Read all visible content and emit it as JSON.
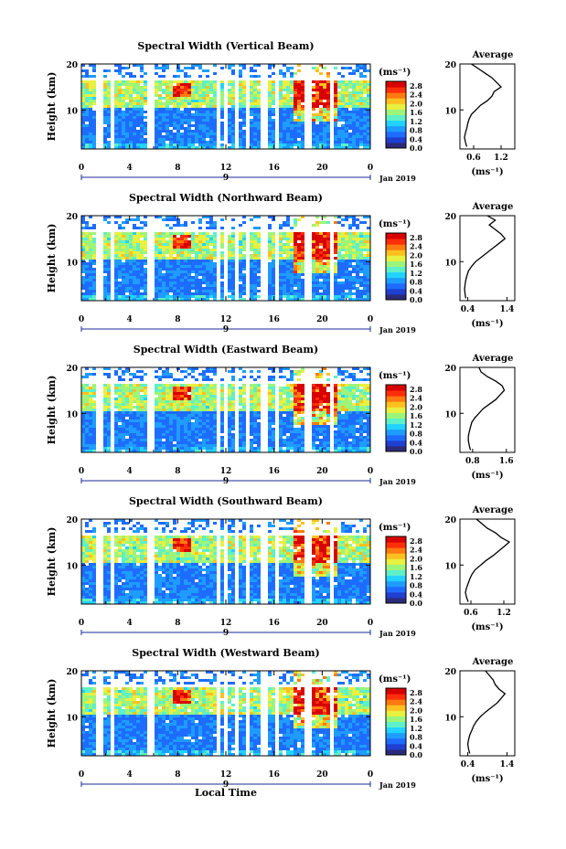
{
  "figure": {
    "date_label": "Jan 2019",
    "xlabel": "Local Time",
    "ylabel": "Height (km)",
    "unit_label": "(ms⁻¹)",
    "day_marker": "9",
    "profile_title": "Average",
    "colors": [
      "#2b2b7a",
      "#1f3fd0",
      "#1e6cff",
      "#1e9cff",
      "#22d2ff",
      "#5ef0c8",
      "#9cf57a",
      "#e8f040",
      "#ffc020",
      "#ff7a10",
      "#ff2e0a",
      "#d80000"
    ]
  },
  "chart_data": [
    {
      "type": "heatmap",
      "title": "Spectral Width (Vertical Beam)",
      "xlabel": "Local Time",
      "ylabel": "Height (km)",
      "x_ticks": [
        "0",
        "4",
        "8",
        "12",
        "16",
        "20",
        "0"
      ],
      "x_tick_values": [
        0,
        4,
        8,
        12,
        16,
        20,
        24
      ],
      "y_ticks": [
        "10",
        "20"
      ],
      "y_tick_values": [
        10,
        20
      ],
      "ylim": [
        1.5,
        20
      ],
      "colorbar_ticks": [
        "2.8",
        "2.4",
        "2.0",
        "1.6",
        "1.2",
        "0.8",
        "0.4",
        "0.0"
      ],
      "colorbar_range": [
        0.0,
        3.0
      ],
      "profile": {
        "title": "Average",
        "xlabel": "(ms⁻¹)",
        "x_ticks": [
          "0.6",
          "1.2"
        ],
        "x_tick_values": [
          0.6,
          1.2
        ],
        "xlim": [
          0.3,
          1.5
        ],
        "height": [
          2,
          3,
          4,
          5,
          6,
          7,
          8,
          9,
          10,
          11,
          12,
          13,
          14,
          15,
          16,
          17,
          18,
          19,
          20
        ],
        "value": [
          0.45,
          0.42,
          0.4,
          0.42,
          0.45,
          0.47,
          0.5,
          0.55,
          0.65,
          0.75,
          0.9,
          1.0,
          1.05,
          1.2,
          1.1,
          1.0,
          0.85,
          0.7,
          0.55
        ]
      }
    },
    {
      "type": "heatmap",
      "title": "Spectral Width (Northward Beam)",
      "xlabel": "Local Time",
      "ylabel": "Height (km)",
      "x_ticks": [
        "0",
        "4",
        "8",
        "12",
        "16",
        "20",
        "0"
      ],
      "x_tick_values": [
        0,
        4,
        8,
        12,
        16,
        20,
        24
      ],
      "y_ticks": [
        "10",
        "20"
      ],
      "y_tick_values": [
        10,
        20
      ],
      "ylim": [
        1.5,
        20
      ],
      "colorbar_ticks": [
        "2.8",
        "2.4",
        "2.0",
        "1.6",
        "1.2",
        "0.8",
        "0.4",
        "0.0"
      ],
      "colorbar_range": [
        0.0,
        3.0
      ],
      "profile": {
        "title": "Average",
        "xlabel": "(ms⁻¹)",
        "x_ticks": [
          "0.4",
          "1.4"
        ],
        "x_tick_values": [
          0.4,
          1.4
        ],
        "xlim": [
          0.2,
          1.6
        ],
        "height": [
          2,
          3,
          4,
          5,
          6,
          7,
          8,
          9,
          10,
          11,
          12,
          13,
          14,
          15,
          16,
          17,
          18,
          19,
          20
        ],
        "value": [
          0.35,
          0.33,
          0.32,
          0.33,
          0.35,
          0.38,
          0.42,
          0.5,
          0.6,
          0.75,
          0.9,
          1.05,
          1.2,
          1.35,
          1.25,
          1.1,
          0.95,
          1.1,
          0.9
        ]
      }
    },
    {
      "type": "heatmap",
      "title": "Spectral Width (Eastward Beam)",
      "xlabel": "Local Time",
      "ylabel": "Height (km)",
      "x_ticks": [
        "0",
        "4",
        "8",
        "12",
        "16",
        "20",
        "0"
      ],
      "x_tick_values": [
        0,
        4,
        8,
        12,
        16,
        20,
        24
      ],
      "y_ticks": [
        "10",
        "20"
      ],
      "y_tick_values": [
        10,
        20
      ],
      "ylim": [
        1.5,
        20
      ],
      "colorbar_ticks": [
        "2.8",
        "2.4",
        "2.0",
        "1.6",
        "1.2",
        "0.8",
        "0.4",
        "0.0"
      ],
      "colorbar_range": [
        0.0,
        3.0
      ],
      "profile": {
        "title": "Average",
        "xlabel": "(ms⁻¹)",
        "x_ticks": [
          "0.8",
          "1.6"
        ],
        "x_tick_values": [
          0.8,
          1.6
        ],
        "xlim": [
          0.5,
          1.8
        ],
        "height": [
          2,
          3,
          4,
          5,
          6,
          7,
          8,
          9,
          10,
          11,
          12,
          13,
          14,
          15,
          16,
          17,
          18,
          19,
          20
        ],
        "value": [
          0.75,
          0.72,
          0.7,
          0.7,
          0.72,
          0.75,
          0.78,
          0.85,
          0.95,
          1.05,
          1.2,
          1.35,
          1.45,
          1.55,
          1.5,
          1.35,
          1.15,
          1.0,
          0.95
        ]
      }
    },
    {
      "type": "heatmap",
      "title": "Spectral Width (Southward Beam)",
      "xlabel": "Local Time",
      "ylabel": "Height (km)",
      "x_ticks": [
        "0",
        "4",
        "8",
        "12",
        "16",
        "20",
        "0"
      ],
      "x_tick_values": [
        0,
        4,
        8,
        12,
        16,
        20,
        24
      ],
      "y_ticks": [
        "10",
        "20"
      ],
      "y_tick_values": [
        10,
        20
      ],
      "ylim": [
        1.5,
        20
      ],
      "colorbar_ticks": [
        "2.8",
        "2.4",
        "2.0",
        "1.6",
        "1.2",
        "0.8",
        "0.4",
        "0.0"
      ],
      "colorbar_range": [
        0.0,
        3.0
      ],
      "profile": {
        "title": "Average",
        "xlabel": "(ms⁻¹)",
        "x_ticks": [
          "0.6",
          "1.2"
        ],
        "x_tick_values": [
          0.6,
          1.2
        ],
        "xlim": [
          0.4,
          1.4
        ],
        "height": [
          2,
          3,
          4,
          5,
          6,
          7,
          8,
          9,
          10,
          11,
          12,
          13,
          14,
          15,
          16,
          17,
          18,
          19,
          20
        ],
        "value": [
          0.55,
          0.52,
          0.5,
          0.52,
          0.55,
          0.58,
          0.62,
          0.68,
          0.78,
          0.88,
          1.0,
          1.1,
          1.2,
          1.3,
          1.15,
          1.05,
          0.9,
          0.8,
          0.7
        ]
      }
    },
    {
      "type": "heatmap",
      "title": "Spectral Width (Westward Beam)",
      "xlabel": "Local Time",
      "ylabel": "Height (km)",
      "x_ticks": [
        "0",
        "4",
        "8",
        "12",
        "16",
        "20",
        "0"
      ],
      "x_tick_values": [
        0,
        4,
        8,
        12,
        16,
        20,
        24
      ],
      "y_ticks": [
        "10",
        "20"
      ],
      "y_tick_values": [
        10,
        20
      ],
      "ylim": [
        1.5,
        20
      ],
      "colorbar_ticks": [
        "2.8",
        "2.4",
        "2.0",
        "1.6",
        "1.2",
        "0.8",
        "0.4",
        "0.0"
      ],
      "colorbar_range": [
        0.0,
        3.0
      ],
      "profile": {
        "title": "Average",
        "xlabel": "(ms⁻¹)",
        "x_ticks": [
          "0.4",
          "1.4"
        ],
        "x_tick_values": [
          0.4,
          1.4
        ],
        "xlim": [
          0.2,
          1.6
        ],
        "height": [
          2,
          3,
          4,
          5,
          6,
          7,
          8,
          9,
          10,
          11,
          12,
          13,
          14,
          15,
          16,
          17,
          18,
          19,
          20
        ],
        "value": [
          0.45,
          0.42,
          0.4,
          0.42,
          0.45,
          0.5,
          0.55,
          0.62,
          0.72,
          0.85,
          1.0,
          1.15,
          1.25,
          1.35,
          1.2,
          1.1,
          1.05,
          0.95,
          0.85
        ]
      }
    }
  ]
}
